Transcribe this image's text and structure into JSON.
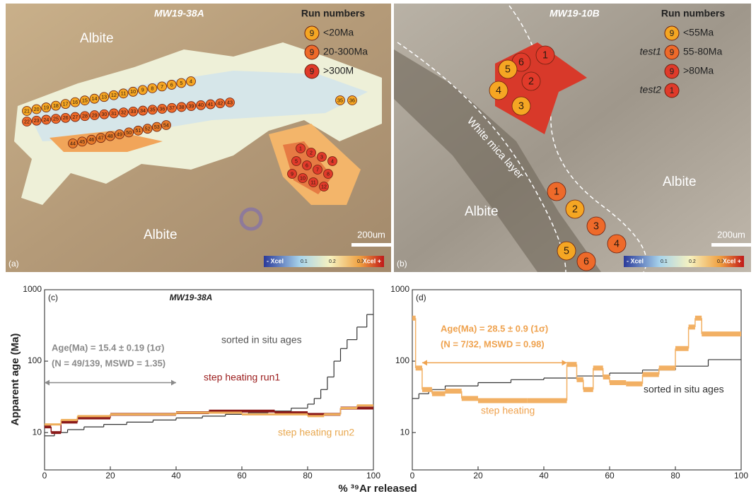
{
  "panels": [
    {
      "label": "(a)",
      "title": "MW19-38A",
      "legend_title": "Run numbers",
      "legend": [
        {
          "symbol": "9",
          "label": "<20Ma",
          "color": "#f5a623"
        },
        {
          "symbol": "9",
          "label": "20-300Ma",
          "color": "#ee6a2a"
        },
        {
          "symbol": "9",
          "label": ">300M",
          "color": "#e03a2a"
        }
      ],
      "places": [
        "Albite",
        "Albite"
      ],
      "scale": "200um",
      "colorbar": {
        "left": "- Xcel",
        "ticks": [
          "0.1",
          "0.2",
          "0.3"
        ],
        "right": "Xcel +"
      },
      "spot_rows": [
        {
          "color": "#f5a623",
          "labels": [
            "21",
            "20",
            "19",
            "18",
            "17",
            "16",
            "15",
            "14",
            "13",
            "12",
            "11",
            "10",
            "9",
            "8",
            "7",
            "6",
            "5",
            "4"
          ]
        },
        {
          "color": "#ee6a2a",
          "labels": [
            "22",
            "23",
            "24",
            "25",
            "26",
            "27",
            "28",
            "29",
            "30",
            "31",
            "32",
            "33",
            "34",
            "35",
            "36",
            "37",
            "38",
            "39",
            "40",
            "41",
            "42",
            "43"
          ]
        },
        {
          "color": "#e67a2a",
          "labels": [
            "44",
            "45",
            "46",
            "47",
            "48",
            "49",
            "50",
            "51",
            "52",
            "53",
            "54"
          ]
        },
        {
          "color": "#e03a2a",
          "labels": [
            "1",
            "2",
            "3",
            "4",
            "5",
            "6",
            "7",
            "8",
            "9",
            "10",
            "11",
            "12"
          ]
        },
        {
          "color": "#f5a623",
          "labels": [
            "35",
            "36"
          ]
        }
      ]
    },
    {
      "label": "(b)",
      "title": "MW19-10B",
      "legend_title": "Run numbers",
      "legend": [
        {
          "tag": null,
          "symbol": "9",
          "label": "<55Ma",
          "color": "#f5a623"
        },
        {
          "tag": "test1",
          "symbol": "9",
          "label": "55-80Ma",
          "color": "#ee6a2a"
        },
        {
          "tag": null,
          "symbol": "9",
          "label": ">80Ma",
          "color": "#e03a2a"
        },
        {
          "tag": "test2",
          "symbol": "1",
          "label": null,
          "color": "#e03a2a"
        }
      ],
      "places": [
        "Albite",
        "Albite"
      ],
      "layer": "White mica layer",
      "scale": "200um",
      "colorbar": {
        "left": "- Xcel",
        "ticks": [
          "0.1",
          "0.2",
          "0.3"
        ],
        "right": "Xcel +"
      },
      "spots": [
        {
          "label": "6",
          "color": "#e03a2a"
        },
        {
          "label": "1",
          "color": "#e03a2a"
        },
        {
          "label": "5",
          "color": "#f5a623"
        },
        {
          "label": "2",
          "color": "#e03a2a"
        },
        {
          "label": "4",
          "color": "#f5a623"
        },
        {
          "label": "3",
          "color": "#f5a623"
        },
        {
          "label": "1",
          "color": "#ee6a2a"
        },
        {
          "label": "2",
          "color": "#f5a623"
        },
        {
          "label": "3",
          "color": "#ee6a2a"
        },
        {
          "label": "4",
          "color": "#ee6a2a"
        },
        {
          "label": "5",
          "color": "#f5a623"
        },
        {
          "label": "6",
          "color": "#ee6a2a"
        }
      ]
    }
  ],
  "x_label": "% ³⁹Ar released",
  "chart_data": [
    {
      "type": "step",
      "label": "(c)",
      "title": "MW19-38A",
      "y_label": "Apparent age (Ma)",
      "xlim": [
        0,
        100
      ],
      "xticks": [
        0,
        20,
        40,
        60,
        80,
        100
      ],
      "ylim": [
        3,
        1000
      ],
      "yticks": [
        10,
        100,
        1000
      ],
      "log_y": true,
      "series": [
        {
          "name": "sorted in situ ages",
          "color": "#333333",
          "x": [
            0,
            3,
            7,
            12,
            18,
            25,
            33,
            40,
            48,
            55,
            62,
            68,
            75,
            80,
            82,
            84,
            86,
            88,
            90,
            92,
            95,
            98
          ],
          "values": [
            9,
            10,
            11,
            12,
            13,
            14,
            15,
            16,
            17,
            18,
            19,
            20,
            22,
            25,
            30,
            40,
            60,
            100,
            150,
            200,
            300,
            450
          ]
        },
        {
          "name": "step heating run1",
          "color": "#8b1a1a",
          "x": [
            0,
            2,
            5,
            10,
            20,
            30,
            40,
            50,
            60,
            70,
            80,
            90
          ],
          "values": [
            12,
            10,
            14,
            16,
            18,
            18,
            19,
            20,
            20,
            19,
            18,
            22
          ]
        },
        {
          "name": "step heating run2",
          "color": "#efae5a",
          "x": [
            0,
            5,
            10,
            20,
            30,
            40,
            50,
            60,
            70,
            80,
            85,
            90,
            95
          ],
          "values": [
            13,
            15,
            17,
            18,
            18,
            19,
            19,
            18,
            18,
            17,
            18,
            22,
            24
          ]
        }
      ],
      "annotations": [
        "Age(Ma) = 15.4 ± 0.19 (1σ)",
        "(N = 49/139, MSWD = 1.35)"
      ],
      "plateau": {
        "x": [
          0,
          40
        ],
        "y": 50
      }
    },
    {
      "type": "step",
      "label": "(d)",
      "xlim": [
        0,
        100
      ],
      "xticks": [
        0,
        20,
        40,
        60,
        80,
        100
      ],
      "ylim": [
        3,
        1000
      ],
      "yticks": [
        10,
        100,
        1000
      ],
      "log_y": true,
      "series": [
        {
          "name": "sorted in situ ages",
          "color": "#333333",
          "x": [
            0,
            2,
            5,
            10,
            20,
            30,
            40,
            50,
            60,
            70,
            80,
            90
          ],
          "values": [
            30,
            35,
            40,
            45,
            50,
            55,
            58,
            62,
            68,
            75,
            85,
            105
          ]
        },
        {
          "name": "step heating",
          "color": "#f2b064",
          "x": [
            0,
            1,
            3,
            6,
            10,
            15,
            20,
            35,
            47,
            50,
            52,
            55,
            58,
            60,
            65,
            70,
            75,
            80,
            84,
            86,
            88
          ],
          "values": [
            400,
            80,
            40,
            35,
            38,
            30,
            28,
            28,
            90,
            55,
            40,
            80,
            60,
            50,
            48,
            65,
            80,
            150,
            300,
            400,
            240
          ]
        }
      ],
      "annotations": [
        "Age(Ma) = 28.5 ± 0.9 (1σ)",
        "(N = 7/32, MSWD = 0.98)"
      ],
      "plateau": {
        "x": [
          3,
          47
        ],
        "y": 95
      }
    }
  ]
}
